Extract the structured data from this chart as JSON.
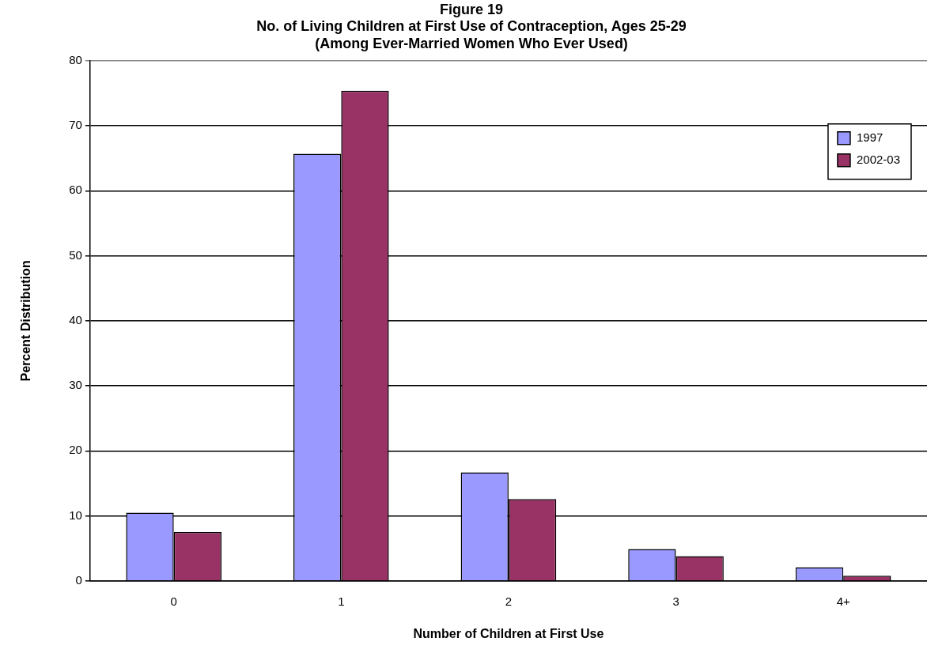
{
  "chart_data": {
    "type": "bar",
    "title": "Figure 19",
    "subtitle": "No. of Living Children at First Use of Contraception, Ages 25-29\n(Among Ever-Married Women Who Ever Used)",
    "xlabel": "Number of Children at First Use",
    "ylabel": "Percent Distribution",
    "categories": [
      "0",
      "1",
      "2",
      "3",
      "4+"
    ],
    "series": [
      {
        "name": "1997",
        "color": "#9999ff",
        "values": [
          10.5,
          65.7,
          16.7,
          4.9,
          2.1
        ]
      },
      {
        "name": "2002-03",
        "color": "#993366",
        "values": [
          7.5,
          75.4,
          12.6,
          3.8,
          0.8
        ]
      }
    ],
    "ylim": [
      0,
      80
    ],
    "yticks": [
      0,
      10,
      20,
      30,
      40,
      50,
      60,
      70,
      80
    ],
    "grid": "y",
    "legend": "top right"
  }
}
